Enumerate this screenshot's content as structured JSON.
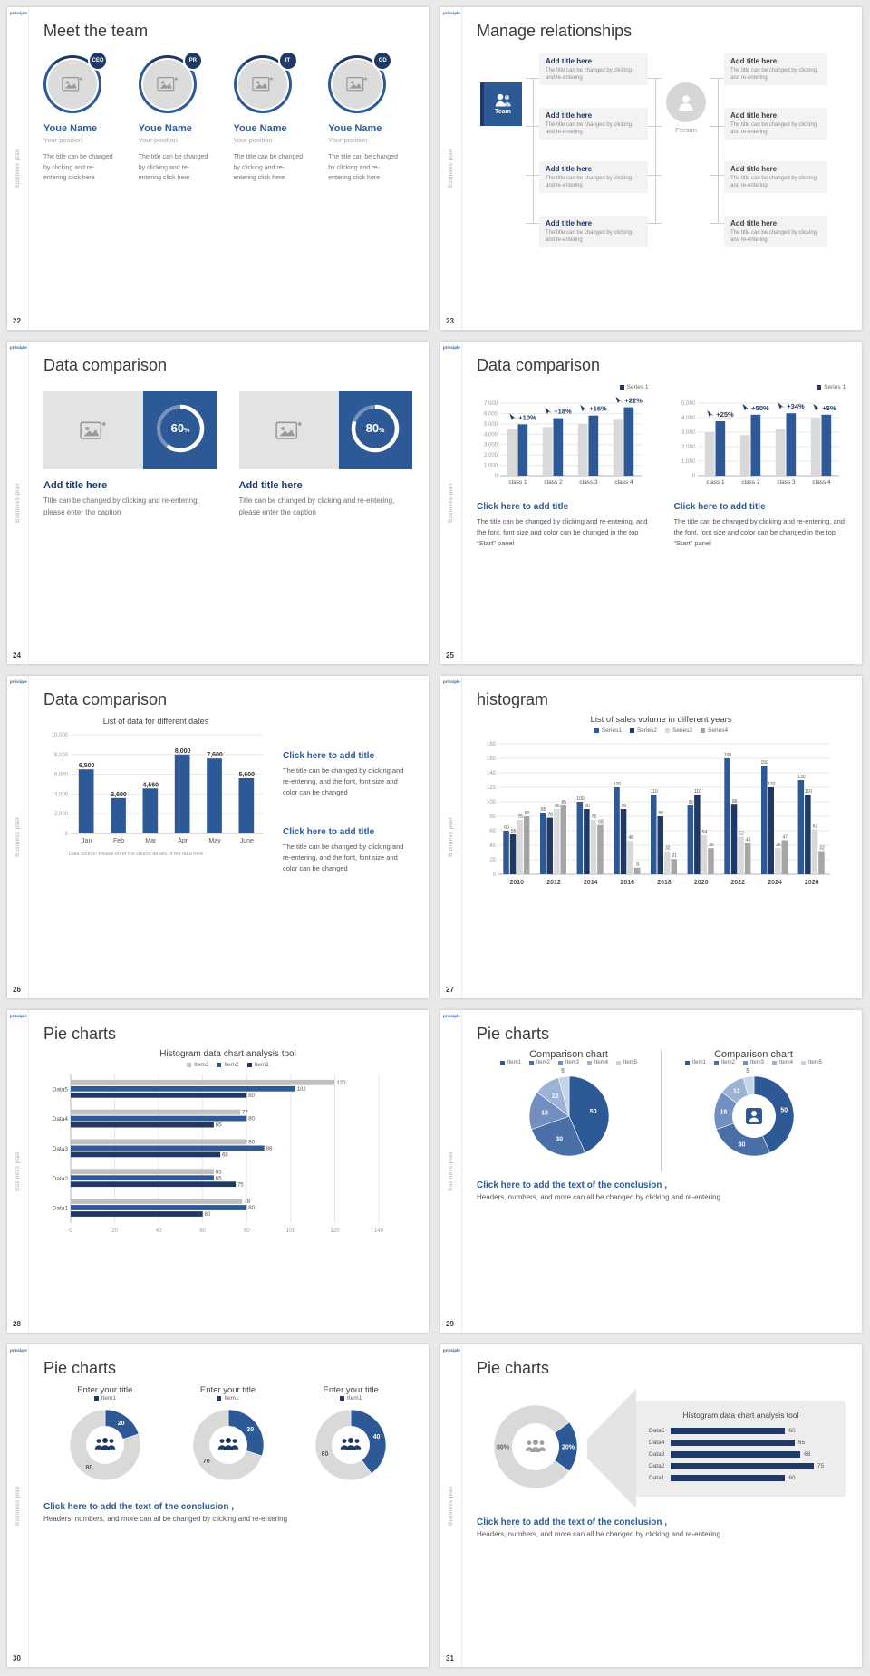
{
  "meta": {
    "logo_text": "principle",
    "sidebar_text": "Business plan"
  },
  "shared": {
    "conclusion_title": "Click here to add the text of the conclusion ,",
    "conclusion_body": "Headers, numbers, and more can all be changed by clicking and re-entering"
  },
  "slides": {
    "s22": {
      "number": "22",
      "title": "Meet the team",
      "member_name": "Youe Name",
      "member_position": "Your position",
      "member_desc": "The title can be changed by clicking and re-entering click here",
      "badges": [
        "CEO",
        "PR",
        "IT",
        "GD"
      ]
    },
    "s23": {
      "number": "23",
      "title": "Manage relationships",
      "team_label": "Team",
      "person_label": "Person",
      "item_title": "Add title here",
      "item_desc": "The title can be changed by clicking and re-entering"
    },
    "s24": {
      "number": "24",
      "title": "Data comparison",
      "card_title": "Add title here",
      "card_caption": "Title can be changed by clicking and re-entering, please enter the caption"
    },
    "s25": {
      "number": "25",
      "title": "Data comparison",
      "cta_title": "Click here to add title",
      "cta_body": "The title can be changed by clicking and re-entering, and the font, font size and color can be changed in the top “Start” panel"
    },
    "s26": {
      "number": "26",
      "title": "Data comparison",
      "cta_title": "Click here to add title",
      "cta_body": "The title can be changed by clicking and re-entering, and the font, font size and color can be changed"
    },
    "s27": {
      "number": "27",
      "title": "histogram"
    },
    "s28": {
      "number": "28",
      "title": "Pie charts"
    },
    "s29": {
      "number": "29",
      "title": "Pie charts"
    },
    "s30": {
      "number": "30",
      "title": "Pie charts"
    },
    "s31": {
      "number": "31",
      "title": "Pie charts"
    }
  },
  "chart_data": [
    {
      "name": "s24-progress-left",
      "type": "progress",
      "value": 60,
      "suffix": "%"
    },
    {
      "name": "s24-progress-right",
      "type": "progress",
      "value": 80,
      "suffix": "%"
    },
    {
      "name": "s25-left-bars",
      "type": "column",
      "legend": [
        {
          "label": "Series 1",
          "color": "#1f3864"
        }
      ],
      "y_tick_labels": [
        "7,000",
        "6,000",
        "5,000",
        "4,000",
        "3,000",
        "2,000",
        "1,000",
        "0"
      ],
      "y_max": 7000,
      "categories": [
        "class 1",
        "class 2",
        "class 3",
        "class 4"
      ],
      "series": [
        {
          "name": "base",
          "color": "#d9d9d9",
          "values": [
            4500,
            4700,
            5000,
            5400
          ]
        },
        {
          "name": "Series 1",
          "color": "#2d5a96",
          "values": [
            4950,
            5550,
            5800,
            6600
          ]
        }
      ],
      "annotations": [
        "+10%",
        "+18%",
        "+16%",
        "+22%"
      ]
    },
    {
      "name": "s25-right-bars",
      "type": "column",
      "legend": [
        {
          "label": "Series 1",
          "color": "#1f3864"
        }
      ],
      "y_tick_labels": [
        "5,000",
        "4,000",
        "3,000",
        "2,000",
        "1,000",
        "0"
      ],
      "y_max": 5000,
      "categories": [
        "class 1",
        "class 2",
        "class 3",
        "class 4"
      ],
      "series": [
        {
          "name": "base",
          "color": "#d9d9d9",
          "values": [
            3000,
            2800,
            3200,
            4000
          ]
        },
        {
          "name": "Series 1",
          "color": "#2d5a96",
          "values": [
            3750,
            4200,
            4300,
            4200
          ]
        }
      ],
      "annotations": [
        "+25%",
        "+50%",
        "+34%",
        "+5%"
      ]
    },
    {
      "name": "s26-bars",
      "type": "column",
      "title": "List of data for different dates",
      "y_tick_labels": [
        "10,000",
        "8,000",
        "6,000",
        "4,000",
        "2,000",
        "0"
      ],
      "y_max": 10000,
      "categories": [
        "Jan",
        "Feb",
        "Mar",
        "Apr",
        "May",
        "June"
      ],
      "series": [
        {
          "name": "data",
          "color": "#2d5a96",
          "values": [
            6500,
            3600,
            4560,
            8000,
            7600,
            5600
          ],
          "labels": [
            "6,500",
            "3,600",
            "4,560",
            "8,000",
            "7,600",
            "5,600"
          ]
        }
      ],
      "bar_labels": true,
      "footnote": "Data source: Please enter the source details of the data here"
    },
    {
      "name": "s27-grouped-bars",
      "type": "column",
      "title": "List of sales volume in different years",
      "legend": [
        {
          "label": "Series1",
          "color": "#2d5a96"
        },
        {
          "label": "Series2",
          "color": "#1f3864"
        },
        {
          "label": "Series3",
          "color": "#d9d9d9"
        },
        {
          "label": "Series4",
          "color": "#a6a6a6"
        }
      ],
      "y_tick_labels": [
        "180",
        "160",
        "140",
        "120",
        "100",
        "80",
        "60",
        "40",
        "20",
        "0"
      ],
      "y_max": 180,
      "categories": [
        "2010",
        "2012",
        "2014",
        "2016",
        "2018",
        "2020",
        "2022",
        "2024",
        "2026"
      ],
      "series": [
        {
          "name": "Series1",
          "color": "#2d5a96",
          "values": [
            60,
            85,
            100,
            120,
            110,
            95,
            160,
            150,
            130
          ]
        },
        {
          "name": "Series2",
          "color": "#1f3864",
          "values": [
            55,
            78,
            90,
            90,
            80,
            110,
            96,
            120,
            110
          ]
        },
        {
          "name": "Series3",
          "color": "#d9d9d9",
          "values": [
            75,
            90,
            75,
            46,
            32,
            54,
            52,
            36,
            62
          ]
        },
        {
          "name": "Series4",
          "color": "#a6a6a6",
          "values": [
            80,
            95,
            68,
            9,
            21,
            36,
            43,
            47,
            32
          ]
        }
      ],
      "bar_labels": true
    },
    {
      "name": "s28-hbars",
      "type": "hbar",
      "title": "Histogram data chart analysis tool",
      "legend": [
        {
          "label": "Item3",
          "color": "#bfbfbf"
        },
        {
          "label": "Item2",
          "color": "#2d5a96"
        },
        {
          "label": "Item1",
          "color": "#1f3864"
        }
      ],
      "x_tick_labels": [
        "0",
        "20",
        "40",
        "60",
        "80",
        "100",
        "120",
        "140"
      ],
      "x_max": 140,
      "categories": [
        "Data5",
        "Data4",
        "Data3",
        "Data2",
        "Data1"
      ],
      "series": [
        {
          "name": "Item3",
          "color": "#bfbfbf",
          "values": [
            120,
            77,
            80,
            65,
            78
          ]
        },
        {
          "name": "Item2",
          "color": "#2d5a96",
          "values": [
            102,
            80,
            88,
            65,
            80
          ]
        },
        {
          "name": "Item1",
          "color": "#1f3864",
          "values": [
            80,
            65,
            68,
            75,
            60
          ]
        }
      ],
      "bar_labels": true
    },
    {
      "name": "s29-pie",
      "type": "pie",
      "title": "Comparison chart",
      "legend": [
        {
          "label": "Item1",
          "color": "#2d5a96"
        },
        {
          "label": "Item2",
          "color": "#4a6fa8"
        },
        {
          "label": "Item3",
          "color": "#7190c1"
        },
        {
          "label": "Item4",
          "color": "#9db3d6"
        },
        {
          "label": "Item5",
          "color": "#c6d4e8"
        }
      ],
      "values": [
        50,
        30,
        18,
        12,
        5
      ],
      "labels": [
        "50",
        "30",
        "18",
        "12",
        "5"
      ],
      "colors": [
        "#2d5a96",
        "#4a6fa8",
        "#7190c1",
        "#9db3d6",
        "#c6d4e8"
      ],
      "label_out": [
        4
      ],
      "start_angle": 0
    },
    {
      "name": "s29-donut",
      "type": "pie",
      "donut": true,
      "title": "Comparison chart",
      "legend": [
        {
          "label": "Item1",
          "color": "#2d5a96"
        },
        {
          "label": "Item2",
          "color": "#4a6fa8"
        },
        {
          "label": "Item3",
          "color": "#7190c1"
        },
        {
          "label": "Item4",
          "color": "#9db3d6"
        },
        {
          "label": "Item5",
          "color": "#c6d4e8"
        }
      ],
      "values": [
        50,
        30,
        18,
        12,
        5
      ],
      "labels": [
        "50",
        "30",
        "18",
        "12",
        "5"
      ],
      "colors": [
        "#2d5a96",
        "#4a6fa8",
        "#7190c1",
        "#9db3d6",
        "#c6d4e8"
      ],
      "label_out": [
        4
      ],
      "icon": "person-badge",
      "icon_color": "#2d5a96",
      "start_angle": 0
    },
    {
      "name": "s30-donut-1",
      "type": "pie",
      "donut": true,
      "title": "Enter your title",
      "legend": [
        {
          "label": "Item1",
          "color": "#1f3864"
        }
      ],
      "values": [
        20,
        80
      ],
      "labels": [
        "20",
        "80"
      ],
      "colors": [
        "#2d5a96",
        "#d9d9d9"
      ],
      "label_colors": [
        "#ffffff",
        "#595959"
      ],
      "icon": "people",
      "icon_color": "#1f3864",
      "start_angle": 0
    },
    {
      "name": "s30-donut-2",
      "type": "pie",
      "donut": true,
      "title": "Enter your title",
      "legend": [
        {
          "label": "Item1",
          "color": "#1f3864"
        }
      ],
      "values": [
        30,
        70
      ],
      "labels": [
        "30",
        "70"
      ],
      "colors": [
        "#2d5a96",
        "#d9d9d9"
      ],
      "label_colors": [
        "#ffffff",
        "#595959"
      ],
      "icon": "people",
      "icon_color": "#1f3864",
      "start_angle": 0
    },
    {
      "name": "s30-donut-3",
      "type": "pie",
      "donut": true,
      "title": "Enter your title",
      "legend": [
        {
          "label": "Item1",
          "color": "#1f3864"
        }
      ],
      "values": [
        40,
        60
      ],
      "labels": [
        "40",
        "60"
      ],
      "colors": [
        "#2d5a96",
        "#d9d9d9"
      ],
      "label_colors": [
        "#ffffff",
        "#595959"
      ],
      "icon": "people",
      "icon_color": "#1f3864",
      "start_angle": 0
    },
    {
      "name": "s31-donut",
      "type": "pie",
      "donut": true,
      "values": [
        20,
        80
      ],
      "labels": [
        "20%",
        "80%"
      ],
      "colors": [
        "#2d5a96",
        "#d9d9d9"
      ],
      "label_colors": [
        "#ffffff",
        "#595959"
      ],
      "icon": "people",
      "icon_color": "#9e9e9e",
      "start_angle": 54
    },
    {
      "name": "s31-bars",
      "type": "hlist",
      "title": "Histogram data chart analysis tool",
      "categories": [
        "Data5",
        "Data4",
        "Data3",
        "Data2",
        "Data1"
      ],
      "values": [
        60,
        65,
        68,
        75,
        60
      ],
      "max": 85,
      "color": "#1f3864"
    }
  ]
}
